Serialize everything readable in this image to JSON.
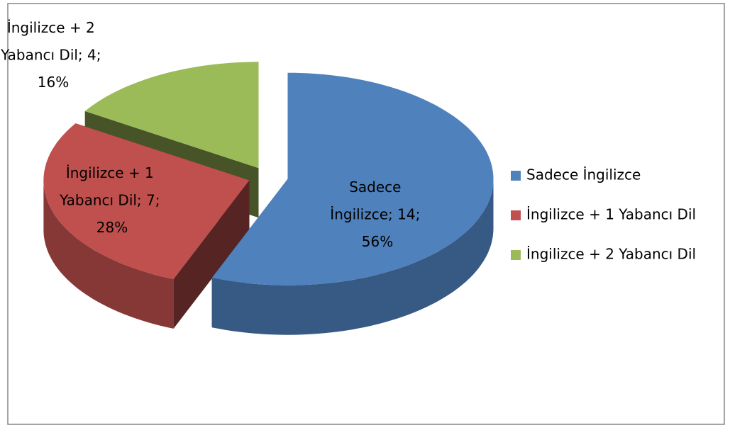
{
  "chart_data": {
    "type": "pie",
    "categories": [
      "Sadece İngilizce",
      "İngilizce + 1 Yabancı Dil",
      "İngilizce + 2 Yabancı Dil"
    ],
    "values": [
      14,
      7,
      4
    ],
    "value_labels": [
      "Sadece İngilizce; 14; 56%",
      "İngilizce + 1 Yabancı Dil; 7; 28%",
      "İngilizce + 2 Yabancı Dil; 4; 16%"
    ],
    "colors": [
      "#4f81bd",
      "#c0504d",
      "#9bbb59"
    ],
    "explode": true,
    "legend": "right"
  }
}
